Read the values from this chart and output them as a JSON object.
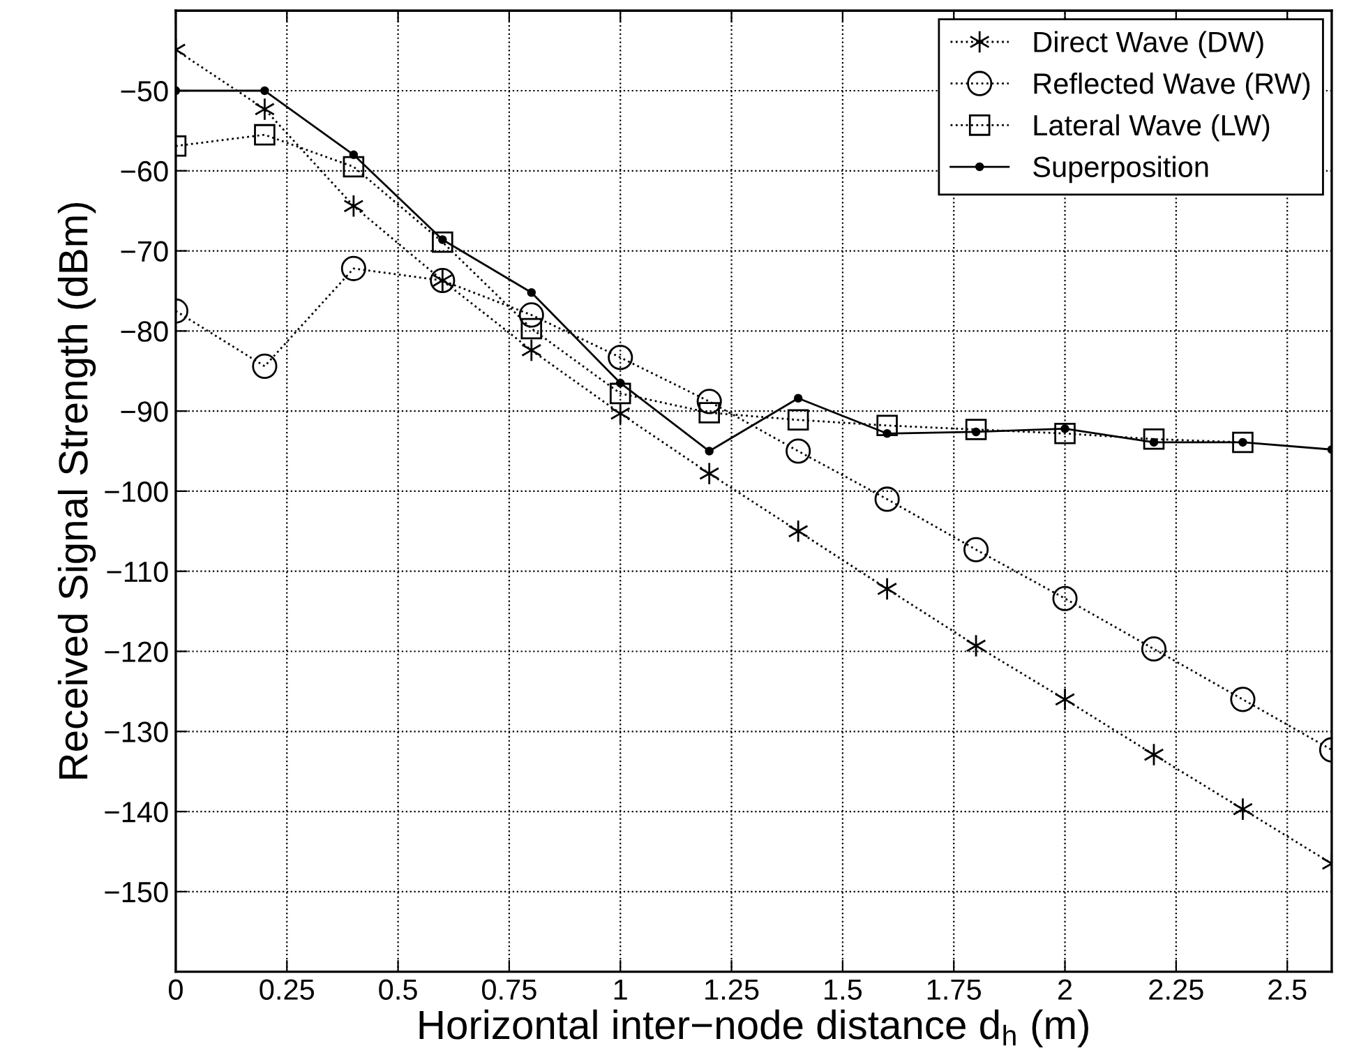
{
  "chart_data": {
    "type": "line",
    "xlabel": "Horizontal inter−node distance d$_{h}$ (m)",
    "ylabel": "Received Signal Strength (dBm)",
    "x": [
      0,
      0.2,
      0.4,
      0.6,
      0.8,
      1.0,
      1.2,
      1.4,
      1.6,
      1.8,
      2.0,
      2.2,
      2.4,
      2.6
    ],
    "series": [
      {
        "name": "Direct Wave (DW)",
        "color": "#000000",
        "marker": "cross",
        "line_style": "dotted",
        "values": [
          -44.9,
          -52.3,
          -64.4,
          -73.7,
          -82.4,
          -90.3,
          -97.8,
          -105.0,
          -112.2,
          -119.3,
          -126.0,
          -132.9,
          -139.7,
          -146.5
        ]
      },
      {
        "name": "Reflected Wave (RW)",
        "color": "#000000",
        "marker": "circle",
        "line_style": "dotted",
        "values": [
          -77.5,
          -84.4,
          -72.2,
          -73.7,
          -78.0,
          -83.3,
          -88.8,
          -95.0,
          -101.0,
          -107.3,
          -113.4,
          -119.7,
          -126.0,
          -132.3
        ]
      },
      {
        "name": "Lateral Wave (LW)",
        "color": "#000000",
        "marker": "square",
        "line_style": "dotted",
        "values": [
          -56.9,
          -55.5,
          -59.5,
          -68.9,
          -79.7,
          -87.8,
          -90.2,
          -91.1,
          -91.8,
          -92.3,
          -92.8,
          -93.5,
          -93.9,
          null
        ]
      },
      {
        "name": "Superposition",
        "color": "#000000",
        "marker": "circle",
        "line_style": "solid",
        "values": [
          -50.0,
          -50.0,
          -58.0,
          -68.6,
          -75.2,
          -86.5,
          -95.0,
          -88.4,
          -92.8,
          -92.6,
          -92.2,
          -93.9,
          -93.9,
          -94.8
        ]
      }
    ],
    "xlim": [
      0,
      2.6
    ],
    "ylim": [
      -160,
      -40
    ],
    "xticks": [
      0,
      0.25,
      0.5,
      0.75,
      1,
      1.25,
      1.5,
      1.75,
      2,
      2.25,
      2.5
    ],
    "yticks": [
      {
        "value": -150,
        "label": "−150"
      },
      {
        "value": -140,
        "label": "−140"
      },
      {
        "value": -130,
        "label": "−130"
      },
      {
        "value": -120,
        "label": "−120"
      },
      {
        "value": -110,
        "label": "−110"
      },
      {
        "value": -100,
        "label": "−100"
      },
      {
        "value": -90,
        "label": "−90"
      },
      {
        "value": -80,
        "label": "−80"
      },
      {
        "value": -70,
        "label": "−70"
      },
      {
        "value": -60,
        "label": "−60"
      },
      {
        "value": -50,
        "label": "−50"
      }
    ],
    "grid": true,
    "legend": "top right"
  }
}
